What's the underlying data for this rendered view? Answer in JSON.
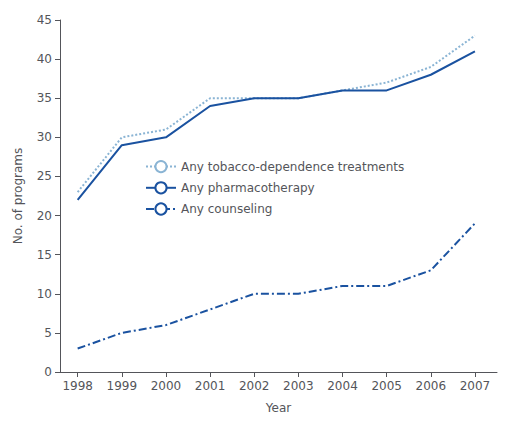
{
  "chart_data": {
    "type": "line",
    "xlabel": "Year",
    "ylabel": "No. of programs",
    "x": [
      1998,
      1999,
      2000,
      2001,
      2002,
      2003,
      2004,
      2005,
      2006,
      2007
    ],
    "series": [
      {
        "name": "Any tobacco-dependence treatments",
        "color": "#8ab4d4",
        "line_style": "dotted",
        "values": [
          23,
          30,
          31,
          35,
          35,
          35,
          36,
          37,
          39,
          43
        ]
      },
      {
        "name": "Any pharmacotherapy",
        "color": "#1a52a0",
        "line_style": "solid",
        "values": [
          22,
          29,
          30,
          34,
          35,
          35,
          36,
          36,
          38,
          41
        ]
      },
      {
        "name": "Any counseling",
        "color": "#1a52a0",
        "line_style": "dashdot",
        "values": [
          3,
          5,
          6,
          8,
          10,
          10,
          11,
          11,
          13,
          19
        ]
      }
    ],
    "xlim": [
      1997.6,
      2007.5
    ],
    "xticks": [
      1998,
      1999,
      2000,
      2001,
      2002,
      2003,
      2004,
      2005,
      2006,
      2007
    ],
    "ylim": [
      0,
      45
    ],
    "yticks": [
      0,
      5,
      10,
      15,
      20,
      25,
      30,
      35,
      40,
      45
    ],
    "grid": false,
    "legend": "upper left"
  }
}
